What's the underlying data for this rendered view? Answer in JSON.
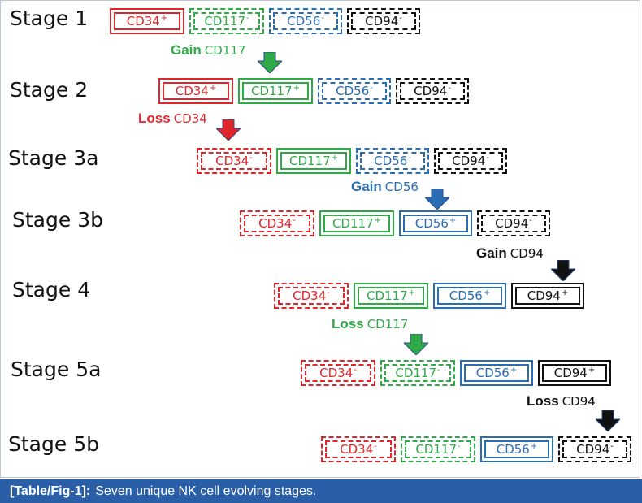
{
  "colors": {
    "CD34": "#e0262b",
    "CD117": "#2eaa47",
    "CD56": "#2a6db5",
    "CD94": "#111111",
    "caption_bg": "#2a5fa8"
  },
  "stages": [
    {
      "label": "Stage 1",
      "markers": [
        {
          "name": "CD34",
          "sign": "+"
        },
        {
          "name": "CD117",
          "sign": "-"
        },
        {
          "name": "CD56",
          "sign": "-"
        },
        {
          "name": "CD94",
          "sign": "-"
        }
      ]
    },
    {
      "label": "Stage 2",
      "markers": [
        {
          "name": "CD34",
          "sign": "+"
        },
        {
          "name": "CD117",
          "sign": "+"
        },
        {
          "name": "CD56",
          "sign": "-"
        },
        {
          "name": "CD94",
          "sign": "-"
        }
      ]
    },
    {
      "label": "Stage 3a",
      "markers": [
        {
          "name": "CD34",
          "sign": "-"
        },
        {
          "name": "CD117",
          "sign": "+"
        },
        {
          "name": "CD56",
          "sign": "-"
        },
        {
          "name": "CD94",
          "sign": "-"
        }
      ]
    },
    {
      "label": "Stage 3b",
      "markers": [
        {
          "name": "CD34",
          "sign": "-"
        },
        {
          "name": "CD117",
          "sign": "+"
        },
        {
          "name": "CD56",
          "sign": "+"
        },
        {
          "name": "CD94",
          "sign": "-"
        }
      ]
    },
    {
      "label": "Stage 4",
      "markers": [
        {
          "name": "CD34",
          "sign": "-"
        },
        {
          "name": "CD117",
          "sign": "+"
        },
        {
          "name": "CD56",
          "sign": "+"
        },
        {
          "name": "CD94",
          "sign": "+"
        }
      ]
    },
    {
      "label": "Stage 5a",
      "markers": [
        {
          "name": "CD34",
          "sign": "-"
        },
        {
          "name": "CD117",
          "sign": "-"
        },
        {
          "name": "CD56",
          "sign": "+"
        },
        {
          "name": "CD94",
          "sign": "+"
        }
      ]
    },
    {
      "label": "Stage 5b",
      "markers": [
        {
          "name": "CD34",
          "sign": "-"
        },
        {
          "name": "CD117",
          "sign": "-"
        },
        {
          "name": "CD56",
          "sign": "+"
        },
        {
          "name": "CD94",
          "sign": "-"
        }
      ]
    }
  ],
  "transitions": [
    {
      "verb": "Gain",
      "marker": "CD117",
      "color": "#2eaa47"
    },
    {
      "verb": "Loss",
      "marker": "CD34",
      "color": "#e0262b"
    },
    {
      "verb": "Gain",
      "marker": "CD56",
      "color": "#2a6db5"
    },
    {
      "verb": "Gain",
      "marker": "CD94",
      "color": "#111111"
    },
    {
      "verb": "Loss",
      "marker": "CD117",
      "color": "#2eaa47"
    },
    {
      "verb": "Loss",
      "marker": "CD94",
      "color": "#111111"
    }
  ],
  "caption": {
    "label": "[Table/Fig-1]:",
    "text": "Seven unique NK cell evolving stages."
  }
}
